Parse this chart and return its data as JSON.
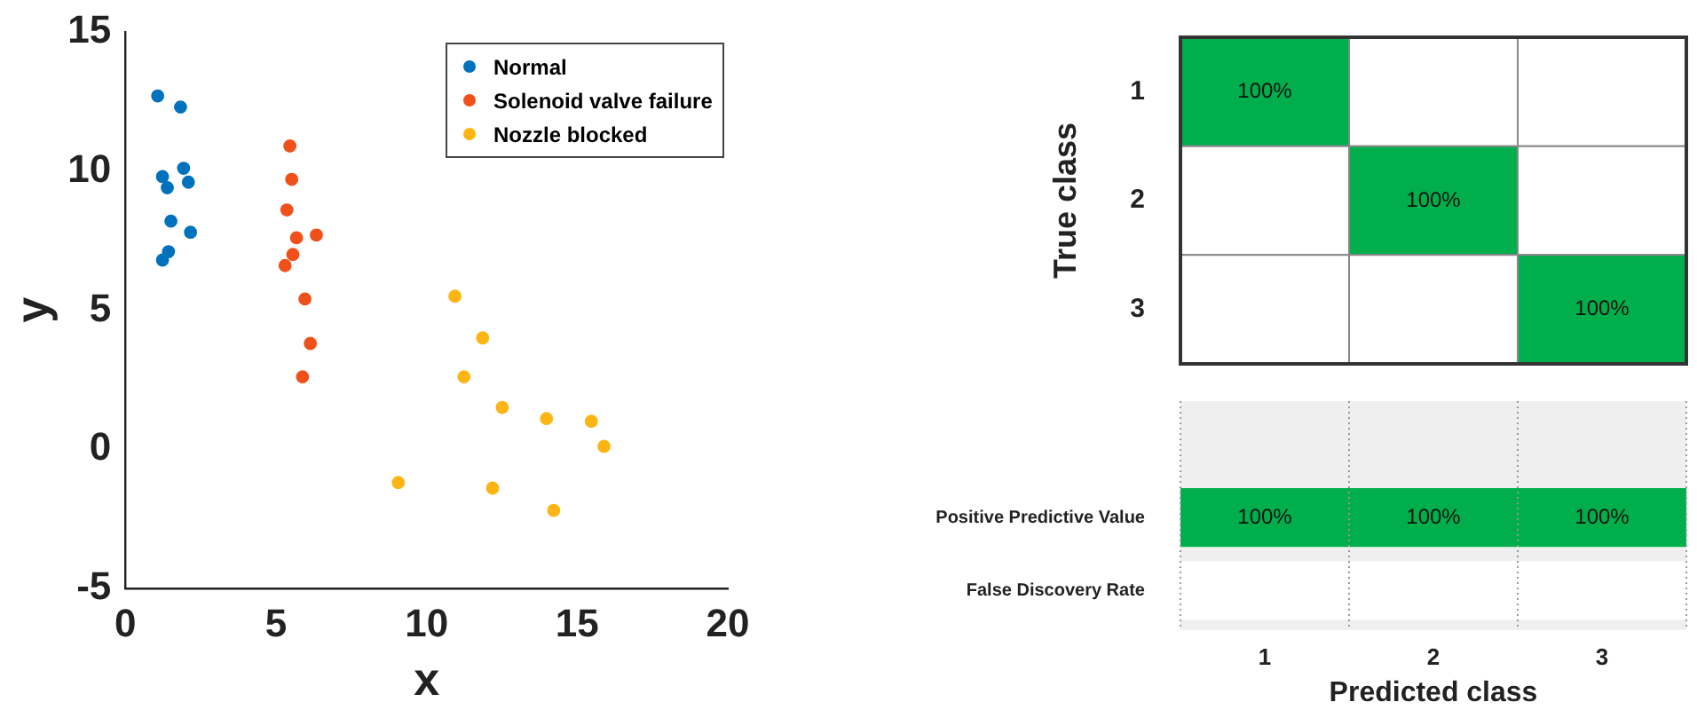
{
  "chart_data": [
    {
      "type": "scatter",
      "xlabel": "x",
      "ylabel": "y",
      "xlim": [
        0,
        20
      ],
      "xticks": [
        0,
        5,
        10,
        15,
        20
      ],
      "ylim": [
        -5,
        15
      ],
      "yticks": [
        -5,
        0,
        5,
        10,
        15
      ],
      "grid": false,
      "legend": "top right",
      "marker": "circle",
      "series": [
        {
          "name": "Normal",
          "color": "#0072bd",
          "x": [
            1.07,
            1.83,
            1.93,
            1.23,
            1.39,
            2.09,
            1.51,
            2.16,
            1.43,
            1.23
          ],
          "values": [
            12.7,
            12.3,
            10.1,
            9.8,
            9.4,
            9.6,
            8.2,
            7.8,
            7.1,
            6.8
          ]
        },
        {
          "name": "Solenoid valve failure",
          "color": "#f0501a",
          "x": [
            5.46,
            5.52,
            5.36,
            5.68,
            6.34,
            5.56,
            5.3,
            5.96,
            6.14,
            5.88
          ],
          "values": [
            10.9,
            9.7,
            8.6,
            7.6,
            7.7,
            7.0,
            6.6,
            5.4,
            3.8,
            2.6
          ]
        },
        {
          "name": "Nozzle blocked",
          "color": "#fdb515",
          "x": [
            10.94,
            11.86,
            11.24,
            12.51,
            13.98,
            15.47,
            15.89,
            9.06,
            12.19,
            14.22
          ],
          "values": [
            5.5,
            4.0,
            2.6,
            1.5,
            1.1,
            1.0,
            0.1,
            -1.2,
            -1.4,
            -2.2
          ]
        }
      ]
    },
    {
      "type": "heatmap",
      "ylabel": "True class",
      "categories": [
        "1",
        "2",
        "3"
      ],
      "y_categories": [
        "1",
        "2",
        "3"
      ],
      "color": "#00ae4b",
      "tick_labels": "y",
      "cells": [
        [
          100,
          null,
          null
        ],
        [
          null,
          100,
          null
        ],
        [
          null,
          null,
          100
        ]
      ],
      "cell_labels": [
        [
          "100%",
          null,
          null
        ],
        [
          null,
          "100%",
          null
        ],
        [
          null,
          null,
          "100%"
        ]
      ]
    },
    {
      "type": "heatmap",
      "xlabel": "Predicted class",
      "categories": [
        "1",
        "2",
        "3"
      ],
      "y_categories": [
        "Positive Predictive Value",
        "False Discovery Rate"
      ],
      "color": "#00ae4b",
      "cells": [
        [
          100,
          100,
          100
        ],
        [
          null,
          null,
          null
        ]
      ],
      "cell_labels": [
        [
          "100%",
          "100%",
          "100%"
        ],
        [
          null,
          null,
          null
        ]
      ]
    }
  ]
}
